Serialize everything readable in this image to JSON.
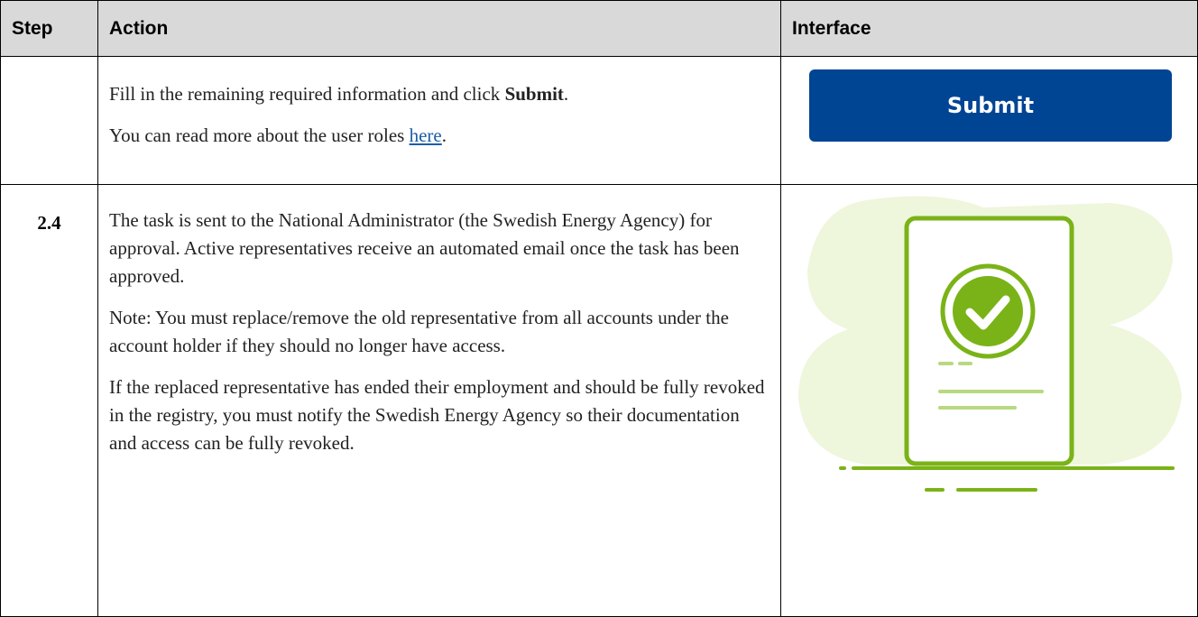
{
  "table": {
    "headers": [
      "Step",
      "Action",
      "Interface"
    ],
    "rows": [
      {
        "action": [
          [
            "Fill in the remaining required information and click ",
            "Submit",
            "."
          ],
          [
            "You can read more about the user roles ",
            "here",
            "."
          ]
        ],
        "interface": "Submit"
      },
      {
        "step": "2.4",
        "action": [
          [
            "The task is sent to the National Administrator (the Swedish Energy Agency) for approval. Active representatives receive an automated email once the task has been approved."
          ],
          [
            "Note: You must replace/remove the old representative from all accounts under the account holder if they should no longer have access."
          ],
          [
            "If the replaced representative has ended their employment and should be fully revoked in the registry, you must notify the Swedish Energy Agency so their documentation and access can be fully revoked."
          ]
        ]
      }
    ]
  }
}
